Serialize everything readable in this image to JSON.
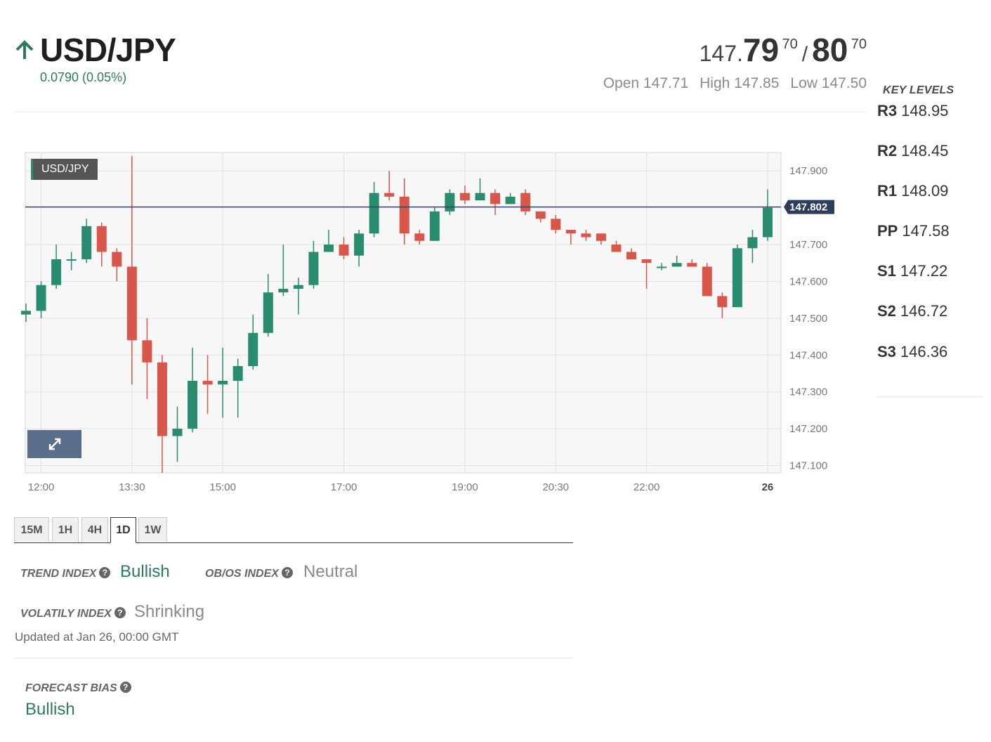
{
  "header": {
    "symbol": "USD/JPY",
    "direction_icon": "arrow-up-icon",
    "change": "0.0790 (0.05%)",
    "bid_prefix": "147.",
    "bid_big": "79",
    "bid_sup": "70",
    "separator": "/",
    "ask_big": "80",
    "ask_sup": "70",
    "open": "Open 147.71",
    "high": "High 147.85",
    "low": "Low 147.50"
  },
  "key_levels": {
    "title": "KEY LEVELS",
    "items": [
      {
        "name": "R3",
        "value": "148.95"
      },
      {
        "name": "R2",
        "value": "148.45"
      },
      {
        "name": "R1",
        "value": "148.09"
      },
      {
        "name": "PP",
        "value": "147.58"
      },
      {
        "name": "S1",
        "value": "147.22"
      },
      {
        "name": "S2",
        "value": "146.72"
      },
      {
        "name": "S3",
        "value": "146.36"
      }
    ]
  },
  "chart_data": {
    "type": "candlestick",
    "label": "USD/JPY",
    "ylim": [
      147.08,
      147.95
    ],
    "yticks": [
      147.9,
      147.8,
      147.7,
      147.6,
      147.5,
      147.4,
      147.3,
      147.2,
      147.1
    ],
    "ytick_labels": [
      "147.900",
      "147.800",
      "147.700",
      "147.600",
      "147.500",
      "147.400",
      "147.300",
      "147.200",
      "147.100"
    ],
    "xticks": [
      {
        "label": "12:00",
        "pos": 1,
        "bold": false
      },
      {
        "label": "13:30",
        "pos": 7,
        "bold": false
      },
      {
        "label": "15:00",
        "pos": 13,
        "bold": false
      },
      {
        "label": "17:00",
        "pos": 21,
        "bold": false
      },
      {
        "label": "19:00",
        "pos": 29,
        "bold": false
      },
      {
        "label": "20:30",
        "pos": 35,
        "bold": false
      },
      {
        "label": "22:00",
        "pos": 41,
        "bold": false
      },
      {
        "label": "26",
        "pos": 49,
        "bold": true
      }
    ],
    "current_price": 147.802,
    "current_price_label": "147.802",
    "colors": {
      "up": "#2a8c6e",
      "down": "#d9574a",
      "price_line": "#2e3d5e"
    },
    "candles": [
      [
        147.51,
        147.52,
        147.54,
        147.49
      ],
      [
        147.52,
        147.59,
        147.6,
        147.5
      ],
      [
        147.59,
        147.66,
        147.7,
        147.58
      ],
      [
        147.66,
        147.66,
        147.68,
        147.63
      ],
      [
        147.66,
        147.75,
        147.77,
        147.65
      ],
      [
        147.75,
        147.68,
        147.76,
        147.64
      ],
      [
        147.68,
        147.64,
        147.69,
        147.6
      ],
      [
        147.64,
        147.44,
        147.94,
        147.32
      ],
      [
        147.44,
        147.38,
        147.5,
        147.28
      ],
      [
        147.38,
        147.18,
        147.4,
        147.08
      ],
      [
        147.18,
        147.2,
        147.26,
        147.11
      ],
      [
        147.2,
        147.33,
        147.42,
        147.19
      ],
      [
        147.33,
        147.32,
        147.4,
        147.24
      ],
      [
        147.32,
        147.33,
        147.42,
        147.23
      ],
      [
        147.33,
        147.37,
        147.39,
        147.23
      ],
      [
        147.37,
        147.46,
        147.51,
        147.36
      ],
      [
        147.46,
        147.57,
        147.62,
        147.45
      ],
      [
        147.57,
        147.58,
        147.7,
        147.56
      ],
      [
        147.58,
        147.59,
        147.61,
        147.51
      ],
      [
        147.59,
        147.68,
        147.71,
        147.58
      ],
      [
        147.68,
        147.7,
        147.74,
        147.68
      ],
      [
        147.7,
        147.67,
        147.72,
        147.66
      ],
      [
        147.67,
        147.73,
        147.74,
        147.64
      ],
      [
        147.73,
        147.84,
        147.87,
        147.72
      ],
      [
        147.84,
        147.83,
        147.9,
        147.82
      ],
      [
        147.83,
        147.73,
        147.88,
        147.7
      ],
      [
        147.73,
        147.71,
        147.74,
        147.7
      ],
      [
        147.71,
        147.79,
        147.8,
        147.71
      ],
      [
        147.79,
        147.84,
        147.85,
        147.78
      ],
      [
        147.84,
        147.82,
        147.86,
        147.81
      ],
      [
        147.82,
        147.84,
        147.88,
        147.82
      ],
      [
        147.84,
        147.81,
        147.85,
        147.78
      ],
      [
        147.81,
        147.83,
        147.84,
        147.81
      ],
      [
        147.84,
        147.79,
        147.85,
        147.78
      ],
      [
        147.79,
        147.77,
        147.79,
        147.76
      ],
      [
        147.77,
        147.74,
        147.78,
        147.73
      ],
      [
        147.74,
        147.73,
        147.74,
        147.7
      ],
      [
        147.73,
        147.72,
        147.74,
        147.71
      ],
      [
        147.73,
        147.71,
        147.73,
        147.7
      ],
      [
        147.7,
        147.68,
        147.71,
        147.68
      ],
      [
        147.68,
        147.66,
        147.69,
        147.66
      ],
      [
        147.66,
        147.65,
        147.66,
        147.58
      ],
      [
        147.64,
        147.64,
        147.65,
        147.63
      ],
      [
        147.64,
        147.65,
        147.67,
        147.64
      ],
      [
        147.65,
        147.64,
        147.66,
        147.64
      ],
      [
        147.64,
        147.56,
        147.65,
        147.56
      ],
      [
        147.56,
        147.53,
        147.57,
        147.5
      ],
      [
        147.53,
        147.69,
        147.7,
        147.53
      ],
      [
        147.69,
        147.72,
        147.74,
        147.65
      ],
      [
        147.72,
        147.8,
        147.85,
        147.71
      ]
    ]
  },
  "tabs": [
    {
      "label": "15M",
      "active": false
    },
    {
      "label": "1H",
      "active": false
    },
    {
      "label": "4H",
      "active": false
    },
    {
      "label": "1D",
      "active": true
    },
    {
      "label": "1W",
      "active": false
    }
  ],
  "indexes": {
    "trend_label": "TREND INDEX",
    "trend_value": "Bullish",
    "obos_label": "OB/OS INDEX",
    "obos_value": "Neutral",
    "volatility_label": "VOLATILY INDEX",
    "volatility_value": "Shrinking",
    "help_glyph": "?",
    "updated": "Updated at Jan 26, 00:00 GMT"
  },
  "forecast": {
    "label": "FORECAST BIAS",
    "value": "Bullish"
  }
}
